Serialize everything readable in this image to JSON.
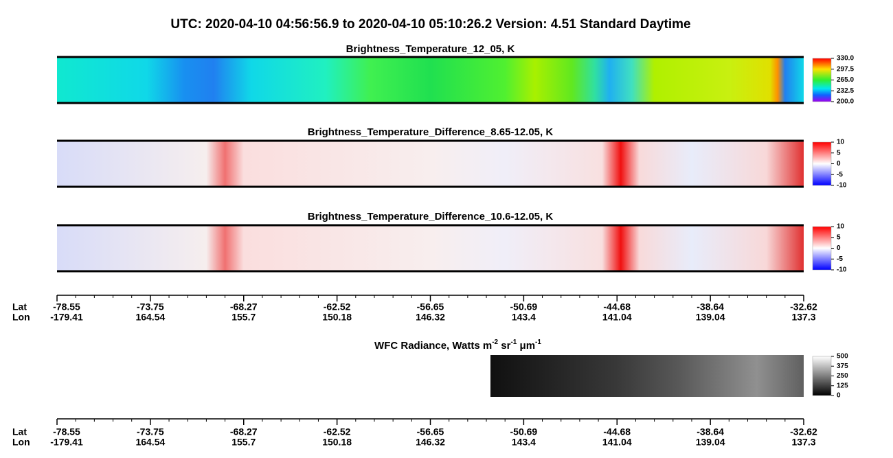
{
  "title": "UTC:  2020-04-10   04:56:56.9  to  2020-04-10   05:10:26.2    Version: 4.51  Standard Daytime",
  "chart_data": [
    {
      "type": "heatmap",
      "title": "Brightness_Temperature_12_05, K",
      "clim": [
        200,
        330
      ],
      "cticks": [
        {
          "value": 330,
          "label": "330.0"
        },
        297.5,
        {
          "value": 265,
          "label": "265.0"
        },
        232.5,
        {
          "value": 200,
          "label": "200.0"
        }
      ]
    },
    {
      "type": "heatmap",
      "title": "Brightness_Temperature_Difference_8.65-12.05, K",
      "clim": [
        -10,
        10
      ],
      "cticks": [
        10,
        5,
        0,
        -5,
        -10
      ]
    },
    {
      "type": "heatmap",
      "title": "Brightness_Temperature_Difference_10.6-12.05, K",
      "clim": [
        -10,
        10
      ],
      "cticks": [
        10,
        5,
        0,
        -5,
        -10
      ]
    },
    {
      "type": "heatmap",
      "title_parts": [
        "WFC Radiance, Watts m",
        "-2",
        " sr",
        "-1",
        " μm",
        "-1"
      ],
      "clim": [
        0,
        500
      ],
      "cticks": [
        500,
        375,
        250,
        125,
        0
      ]
    }
  ],
  "geo_axis": {
    "lat_label": "Lat",
    "lon_label": "Lon",
    "lat": [
      -78.55,
      -73.75,
      -68.27,
      -62.52,
      -56.65,
      -50.69,
      -44.68,
      -38.64,
      -32.62
    ],
    "lon": [
      -179.41,
      164.54,
      155.7,
      150.18,
      146.32,
      143.4,
      141.04,
      139.04,
      137.3
    ]
  }
}
